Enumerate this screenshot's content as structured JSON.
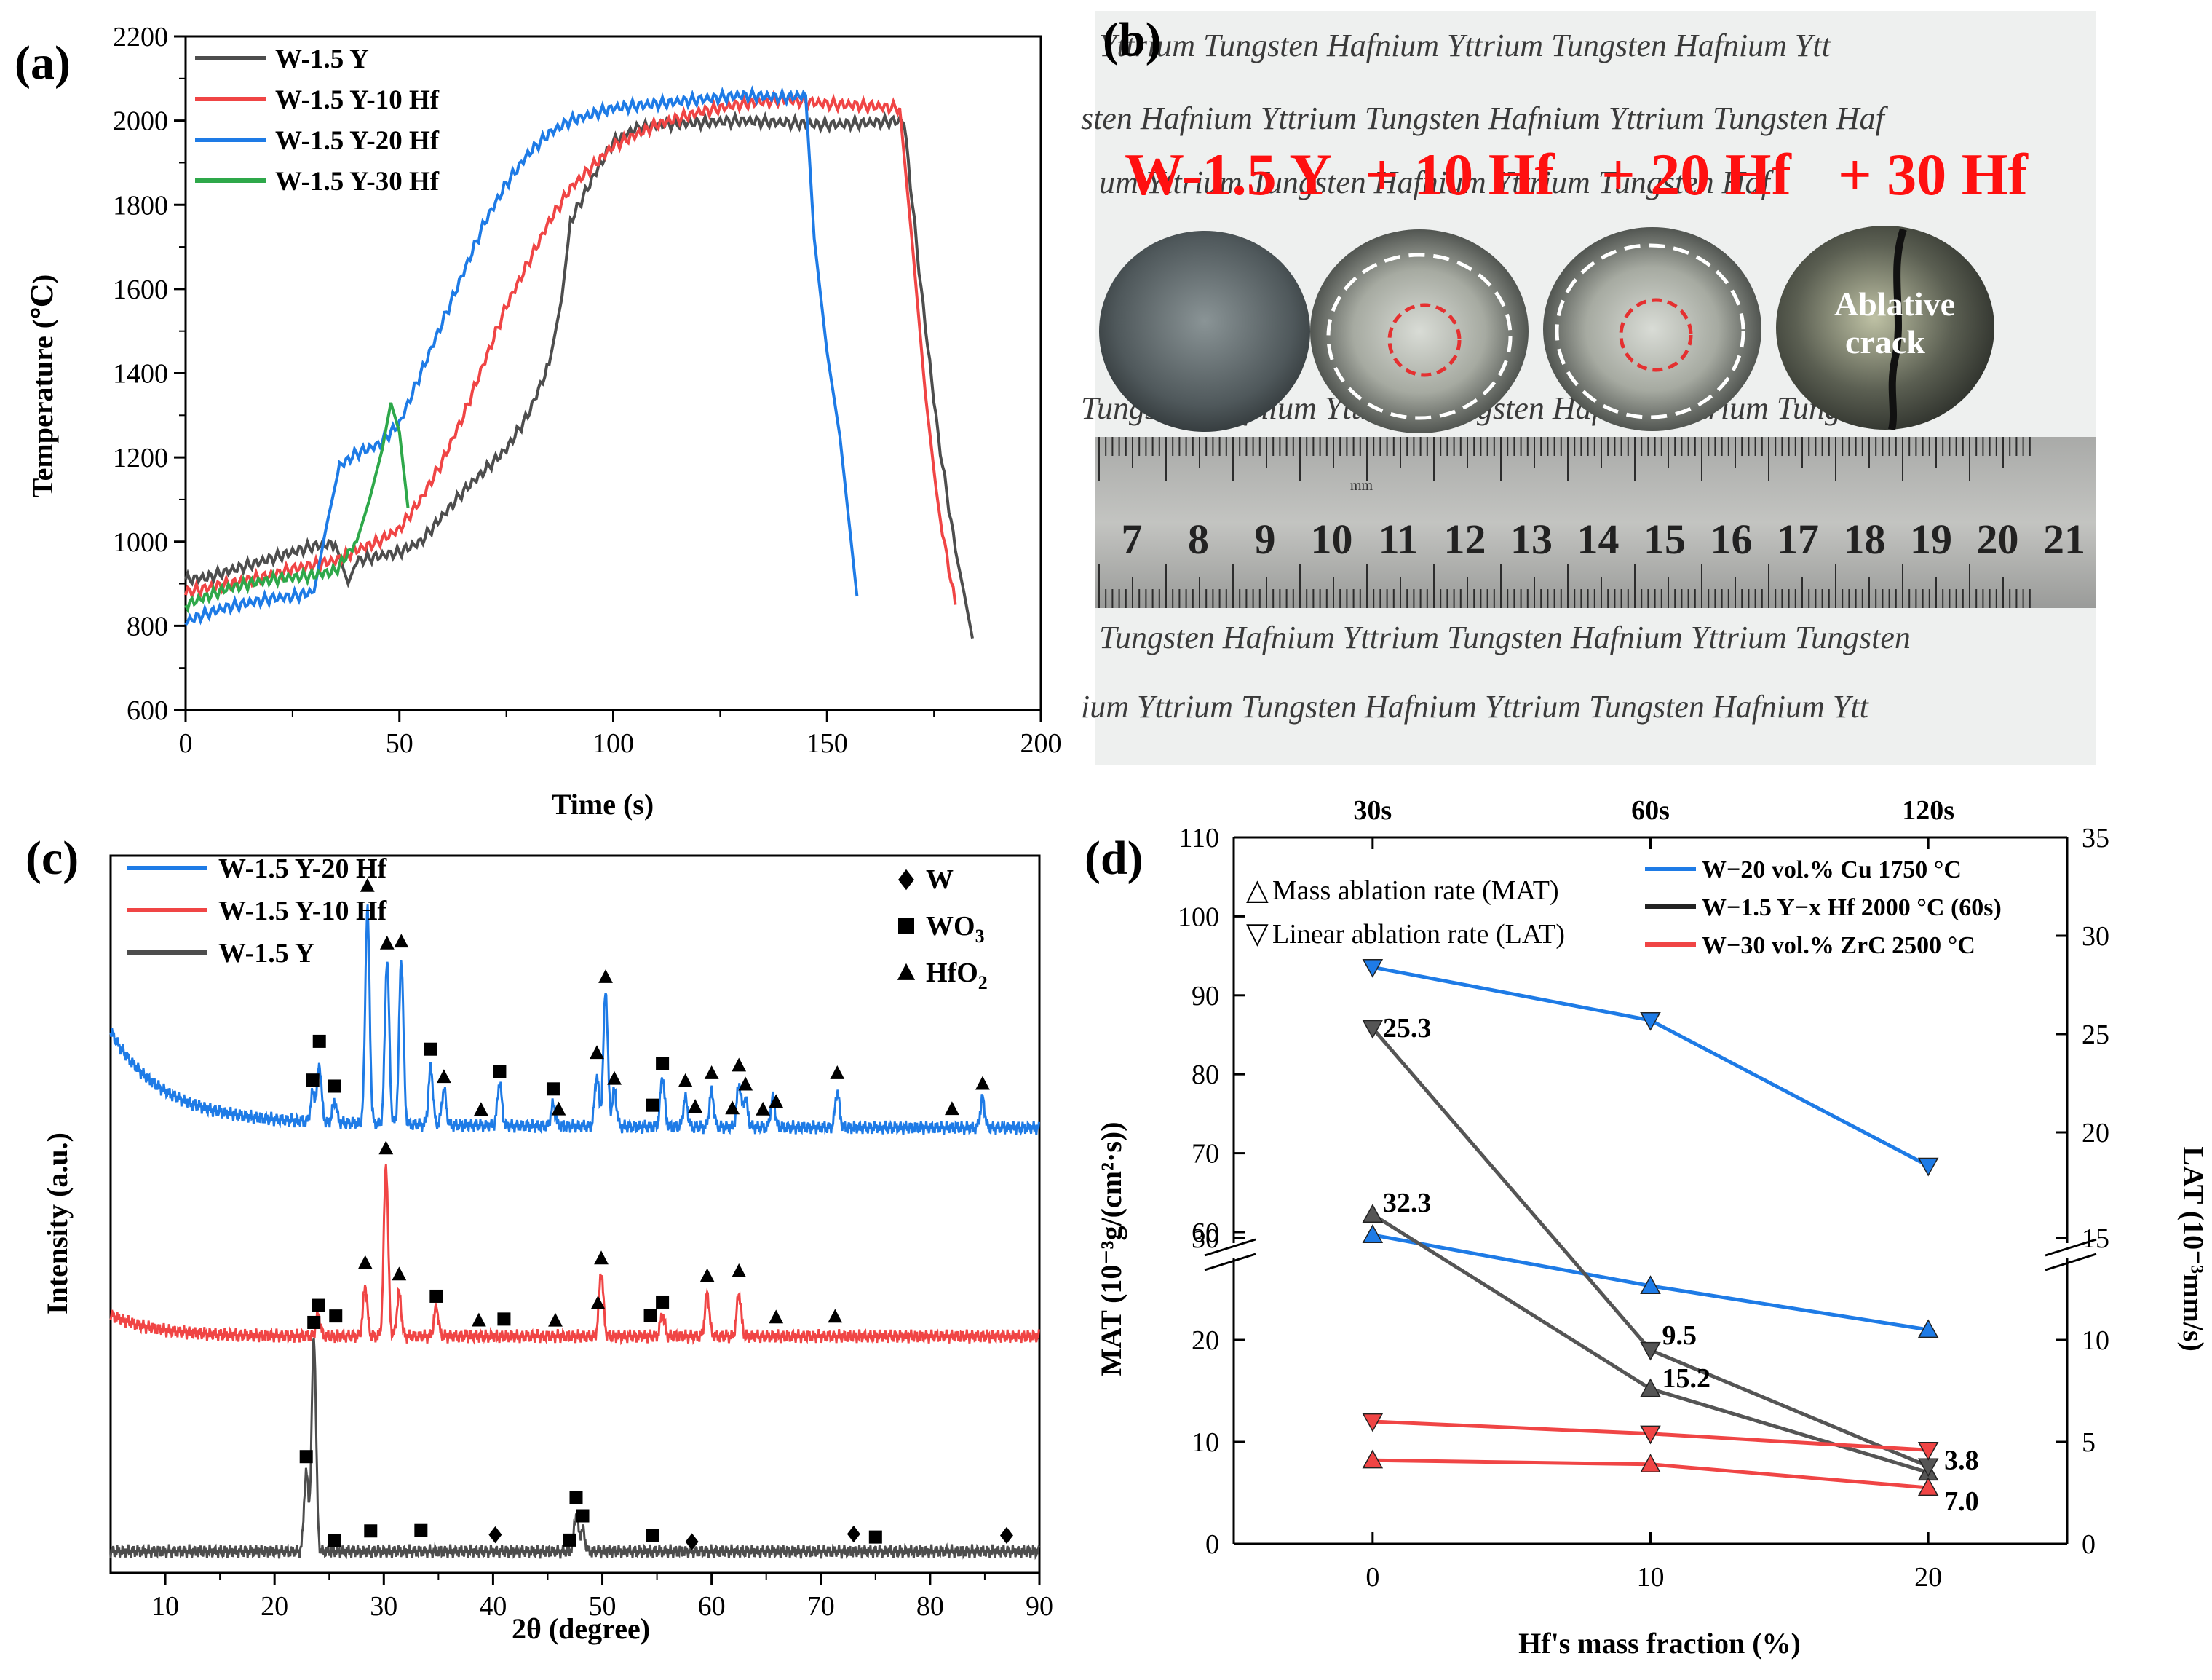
{
  "colors": {
    "gray": "#4d4d4d",
    "red": "#f04545",
    "blue": "#1e7be6",
    "green": "#2ea84a"
  },
  "panel_labels": {
    "a": "(a)",
    "b": "(b)",
    "c": "(c)",
    "d": "(d)"
  },
  "chart_data": [
    {
      "id": "a",
      "type": "line",
      "xlabel": "Time (s)",
      "ylabel": "Temperature (℃)",
      "xlim": [
        0,
        200
      ],
      "ylim": [
        600,
        2200
      ],
      "xticks": [
        0,
        50,
        100,
        150,
        200
      ],
      "yticks": [
        600,
        800,
        1000,
        1200,
        1400,
        1600,
        1800,
        2000,
        2200
      ],
      "legend_position": "top-left",
      "series": [
        {
          "name": "W-1.5 Y",
          "color": "#4d4d4d",
          "points": [
            [
              0,
              910
            ],
            [
              5,
              915
            ],
            [
              10,
              930
            ],
            [
              15,
              945
            ],
            [
              20,
              960
            ],
            [
              25,
              975
            ],
            [
              30,
              990
            ],
            [
              35,
              995
            ],
            [
              38,
              900
            ],
            [
              40,
              955
            ],
            [
              45,
              965
            ],
            [
              50,
              975
            ],
            [
              55,
              1000
            ],
            [
              60,
              1060
            ],
            [
              65,
              1120
            ],
            [
              70,
              1170
            ],
            [
              75,
              1220
            ],
            [
              80,
              1300
            ],
            [
              85,
              1420
            ],
            [
              88,
              1580
            ],
            [
              90,
              1760
            ],
            [
              95,
              1860
            ],
            [
              100,
              1950
            ],
            [
              105,
              1980
            ],
            [
              110,
              1990
            ],
            [
              120,
              1995
            ],
            [
              130,
              2000
            ],
            [
              140,
              1995
            ],
            [
              150,
              1990
            ],
            [
              160,
              1995
            ],
            [
              168,
              2000
            ],
            [
              172,
              1600
            ],
            [
              176,
              1250
            ],
            [
              180,
              980
            ],
            [
              182,
              880
            ],
            [
              184,
              770
            ]
          ]
        },
        {
          "name": "W-1.5 Y-10 Hf",
          "color": "#f04545",
          "points": [
            [
              0,
              880
            ],
            [
              5,
              890
            ],
            [
              10,
              900
            ],
            [
              15,
              910
            ],
            [
              20,
              920
            ],
            [
              25,
              935
            ],
            [
              30,
              945
            ],
            [
              35,
              955
            ],
            [
              40,
              980
            ],
            [
              45,
              1000
            ],
            [
              50,
              1030
            ],
            [
              55,
              1100
            ],
            [
              60,
              1190
            ],
            [
              65,
              1300
            ],
            [
              70,
              1430
            ],
            [
              75,
              1560
            ],
            [
              80,
              1660
            ],
            [
              85,
              1760
            ],
            [
              90,
              1840
            ],
            [
              95,
              1890
            ],
            [
              100,
              1940
            ],
            [
              110,
              1990
            ],
            [
              120,
              2020
            ],
            [
              130,
              2040
            ],
            [
              140,
              2050
            ],
            [
              150,
              2040
            ],
            [
              160,
              2035
            ],
            [
              167,
              2030
            ],
            [
              170,
              1700
            ],
            [
              173,
              1350
            ],
            [
              176,
              1080
            ],
            [
              180,
              850
            ]
          ]
        },
        {
          "name": "W-1.5 Y-20 Hf",
          "color": "#1e7be6",
          "points": [
            [
              0,
              810
            ],
            [
              5,
              830
            ],
            [
              10,
              845
            ],
            [
              15,
              855
            ],
            [
              20,
              865
            ],
            [
              25,
              870
            ],
            [
              30,
              880
            ],
            [
              33,
              1040
            ],
            [
              36,
              1180
            ],
            [
              40,
              1210
            ],
            [
              45,
              1230
            ],
            [
              50,
              1280
            ],
            [
              55,
              1400
            ],
            [
              60,
              1520
            ],
            [
              65,
              1640
            ],
            [
              70,
              1760
            ],
            [
              75,
              1850
            ],
            [
              80,
              1920
            ],
            [
              85,
              1970
            ],
            [
              90,
              2000
            ],
            [
              100,
              2030
            ],
            [
              110,
              2040
            ],
            [
              120,
              2050
            ],
            [
              130,
              2060
            ],
            [
              140,
              2055
            ],
            [
              145,
              2060
            ],
            [
              147,
              1720
            ],
            [
              150,
              1450
            ],
            [
              153,
              1250
            ],
            [
              155,
              1060
            ],
            [
              157,
              870
            ]
          ]
        },
        {
          "name": "W-1.5 Y-30 Hf",
          "color": "#2ea84a",
          "points": [
            [
              0,
              850
            ],
            [
              5,
              870
            ],
            [
              10,
              890
            ],
            [
              15,
              900
            ],
            [
              20,
              910
            ],
            [
              25,
              915
            ],
            [
              30,
              920
            ],
            [
              35,
              930
            ],
            [
              40,
              1000
            ],
            [
              43,
              1100
            ],
            [
              46,
              1220
            ],
            [
              48,
              1330
            ],
            [
              50,
              1260
            ],
            [
              52,
              1080
            ]
          ]
        }
      ]
    },
    {
      "id": "c",
      "type": "line",
      "xlabel": "2θ (degree)",
      "ylabel": "Intensity (a.u.)",
      "xlim": [
        5,
        90
      ],
      "xticks": [
        10,
        20,
        30,
        40,
        50,
        60,
        70,
        80,
        90
      ],
      "legend_position": "top-left",
      "series": [
        {
          "name": "W-1.5 Y-20 Hf",
          "color": "#1e7be6",
          "offset": 0.62,
          "peaks": [
            [
              23.5,
              0.04
            ],
            [
              24.1,
              0.08
            ],
            [
              25.5,
              0.03
            ],
            [
              28.5,
              0.3
            ],
            [
              30.3,
              0.23
            ],
            [
              31.6,
              0.23
            ],
            [
              34.3,
              0.08
            ],
            [
              35.5,
              0.05
            ],
            [
              40.6,
              0.06
            ],
            [
              45.5,
              0.03
            ],
            [
              49.5,
              0.07
            ],
            [
              50.3,
              0.19
            ],
            [
              51.1,
              0.05
            ],
            [
              55.5,
              0.07
            ],
            [
              57.6,
              0.04
            ],
            [
              60.0,
              0.05
            ],
            [
              62.5,
              0.06
            ],
            [
              63.1,
              0.04
            ],
            [
              65.6,
              0.04
            ],
            [
              71.5,
              0.05
            ],
            [
              84.8,
              0.04
            ]
          ]
        },
        {
          "name": "W-1.5 Y-10 Hf",
          "color": "#f04545",
          "offset": 0.33,
          "peaks": [
            [
              24.0,
              0.03
            ],
            [
              28.3,
              0.07
            ],
            [
              30.2,
              0.24
            ],
            [
              31.4,
              0.06
            ],
            [
              34.8,
              0.04
            ],
            [
              49.9,
              0.09
            ],
            [
              55.5,
              0.03
            ],
            [
              59.6,
              0.06
            ],
            [
              62.5,
              0.06
            ]
          ]
        },
        {
          "name": "W-1.5 Y",
          "color": "#4d4d4d",
          "offset": 0.03,
          "peaks": [
            [
              22.9,
              0.11
            ],
            [
              23.6,
              0.3
            ],
            [
              47.6,
              0.05
            ],
            [
              48.2,
              0.03
            ]
          ]
        }
      ],
      "marker_legend": [
        {
          "symbol": "diamond",
          "label": "W"
        },
        {
          "symbol": "square",
          "label": "WO",
          "sub": "3"
        },
        {
          "symbol": "triangle",
          "label": "HfO",
          "sub": "2"
        }
      ],
      "markers": [
        {
          "series": 0,
          "x": [
            23.5,
            24.1,
            25.5,
            34.3,
            40.6,
            45.5,
            54.6,
            55.5
          ],
          "symbol": "square"
        },
        {
          "series": 0,
          "x": [
            28.5,
            30.3,
            31.6,
            35.5,
            38.9,
            46.0,
            49.5,
            50.3,
            51.1,
            57.6,
            58.5,
            60.0,
            61.9,
            62.5,
            63.1,
            64.7,
            65.9,
            71.5,
            82.0,
            84.8
          ],
          "symbol": "triangle"
        },
        {
          "series": 1,
          "x": [
            24.0,
            25.6,
            34.8,
            41.0,
            54.4,
            55.5
          ],
          "symbol": "square"
        },
        {
          "series": 1,
          "x": [
            28.3,
            30.2,
            31.4,
            38.7,
            45.7,
            49.6,
            49.9,
            59.6,
            62.5,
            65.9,
            71.3
          ],
          "symbol": "triangle"
        },
        {
          "series": 2,
          "x": [
            22.9,
            23.6,
            25.5,
            28.8,
            33.4,
            47.0,
            47.6,
            48.2,
            54.6,
            75.0
          ],
          "symbol": "square"
        },
        {
          "series": 2,
          "x": [
            40.2,
            58.2,
            73.0,
            87.0
          ],
          "symbol": "diamond"
        }
      ]
    },
    {
      "id": "d",
      "type": "line",
      "xlabel": "Hf's mass fraction (%)",
      "ylabel_left": "MAT (10⁻³g/(cm²·s))",
      "ylabel_right": "LAT (10⁻³mm/s)",
      "xlim": [
        -5,
        25
      ],
      "xticks": [
        0,
        10,
        20
      ],
      "top_ticks": [
        "30s",
        "60s",
        "120s"
      ],
      "left_ticks_lower": [
        0,
        10,
        20,
        30
      ],
      "left_ticks_upper": [
        60,
        70,
        80,
        90,
        100,
        110
      ],
      "right_ticks_lower": [
        0,
        5,
        10,
        15
      ],
      "right_ticks_upper": [
        20,
        25,
        30,
        35
      ],
      "legend_position": "top",
      "symbol_legend": [
        {
          "symbol": "△",
          "label": "Mass ablation rate (MAT)"
        },
        {
          "symbol": "▽",
          "label": "Linear ablation rate (LAT)"
        }
      ],
      "line_legend": [
        {
          "name": "W−20 vol.% Cu 1750 °C",
          "color": "#1e7be6"
        },
        {
          "name": "W−1.5 Y−x Hf 2000 °C (60s)",
          "color": "#222222"
        },
        {
          "name": "W−30 vol.% ZrC 2500 °C",
          "color": "#f04545"
        }
      ],
      "series": [
        {
          "group": "Cu",
          "kind": "MAT",
          "color": "#1e7be6",
          "x": [
            0,
            10,
            20
          ],
          "y": [
            30.3,
            25.3,
            21.0
          ]
        },
        {
          "group": "Cu",
          "kind": "LAT",
          "color": "#1e7be6",
          "x": [
            0,
            10,
            20
          ],
          "y": [
            28.4,
            25.7,
            18.3
          ]
        },
        {
          "group": "Hf",
          "kind": "MAT",
          "color": "#555555",
          "x": [
            0,
            10,
            20
          ],
          "y": [
            32.3,
            15.2,
            7.0
          ]
        },
        {
          "group": "Hf",
          "kind": "LAT",
          "color": "#555555",
          "x": [
            0,
            10,
            20
          ],
          "y": [
            25.3,
            9.5,
            3.8
          ]
        },
        {
          "group": "ZrC",
          "kind": "MAT",
          "color": "#f04545",
          "x": [
            0,
            10,
            20
          ],
          "y": [
            8.2,
            7.8,
            5.5
          ]
        },
        {
          "group": "ZrC",
          "kind": "LAT",
          "color": "#f04545",
          "x": [
            0,
            10,
            20
          ],
          "y": [
            6.0,
            5.4,
            4.6
          ]
        }
      ],
      "annotations": [
        "32.3",
        "25.3",
        "15.2",
        "9.5",
        "7.0",
        "3.8"
      ]
    }
  ],
  "photo": {
    "sample_labels": [
      "W-1.5 Y",
      "+ 10 Hf",
      "+ 20 Hf",
      "+ 30 Hf"
    ],
    "crack_label_line1": "Ablative",
    "crack_label_line2": "crack",
    "ruler_unit": "mm",
    "ruler_numbers": [
      "7",
      "8",
      "9",
      "10",
      "11",
      "12",
      "13",
      "14",
      "15",
      "16",
      "17",
      "18",
      "19",
      "20",
      "21"
    ],
    "bg_rows": [
      "Yttrium Tungsten Hafnium Yttrium Tungsten Hafnium Ytt",
      "sten Hafnium Yttrium Tungsten Hafnium Yttrium Tungsten Haf",
      "um Yttrium Tungsten Hafnium Yttrium Tungsten Haf",
      "Tungsten Hafnium Yttrium Tungsten Hafnium Yttrium Tungsten",
      "Hafnium Yttrium Tungsten Hafnium Yttrium Tungsten Hafnium Ytt",
      "Tungsten Hafnium Yttrium Tungsten Hafnium Tungs",
      "Tungsten Hafnium Yttrium Tungsten Hafnium Yttrium Tungsten",
      "Tungsten Hafnium Yttrium Tungsten Hafnium Yttrium Tungsten",
      "ium Yttrium Tungsten Hafnium Yttrium Tungsten Hafnium Ytt"
    ]
  }
}
